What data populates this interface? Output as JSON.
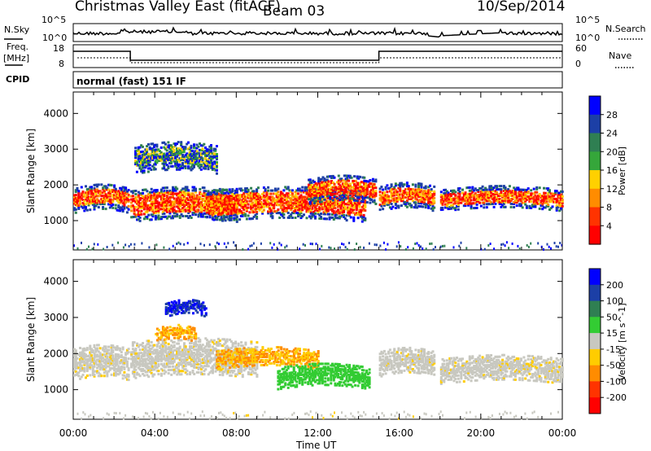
{
  "header": {
    "station": "Christmas Valley East (fitACF)",
    "beam": "Beam 03",
    "date": "10/Sep/2014"
  },
  "params": {
    "nsky_label": "N.Sky",
    "nsearch_label": "N.Search",
    "nsky_ticks": [
      "10^5",
      "10^0"
    ],
    "nsearch_ticks": [
      "10^5",
      "10^0"
    ],
    "freq_label": "Freq.",
    "freq_unit": "[MHz]",
    "freq_ticks": [
      "18",
      "8"
    ],
    "nave_label": "Nave",
    "nave_ticks": [
      "60",
      "0"
    ],
    "cpid_label": "CPID",
    "cpid_value": "normal (fast) 151 IF"
  },
  "colors": {
    "power": [
      "#0000ff",
      "#1c3fa6",
      "#2f7f52",
      "#35a63a",
      "#ffd000",
      "#ff8c00",
      "#ff3300",
      "#ff0000"
    ],
    "velocity": [
      "#0000ff",
      "#1c3fa6",
      "#2f7f52",
      "#33cc33",
      "#c8c8c0",
      "#ffcc00",
      "#ff8c00",
      "#ff3300",
      "#ff0000"
    ]
  },
  "chart_data": [
    {
      "type": "heatmap",
      "panel": "power",
      "ylabel": "Slant Range [km]",
      "yticks": [
        "4000",
        "3000",
        "2000",
        "1000"
      ],
      "ylim": [
        180,
        4600
      ],
      "xlim": [
        0,
        24
      ],
      "colorbar_label": "Power [dB]",
      "colorbar_ticks": [
        "28",
        "24",
        "20",
        "16",
        "12",
        "8",
        "4"
      ],
      "bands": [
        {
          "t0": 0.0,
          "t1": 2.7,
          "r_center": 1550,
          "r_width": 700,
          "level": "high"
        },
        {
          "t0": 2.8,
          "t1": 8.0,
          "r_center": 1400,
          "r_width": 900,
          "level": "high"
        },
        {
          "t0": 3.0,
          "t1": 7.0,
          "r_center": 2700,
          "r_width": 800,
          "level": "mid"
        },
        {
          "t0": 6.5,
          "t1": 14.3,
          "r_center": 1400,
          "r_width": 900,
          "level": "high"
        },
        {
          "t0": 11.5,
          "t1": 14.8,
          "r_center": 1800,
          "r_width": 700,
          "level": "high"
        },
        {
          "t0": 15.0,
          "t1": 17.7,
          "r_center": 1600,
          "r_width": 700,
          "level": "high"
        },
        {
          "t0": 18.0,
          "t1": 24.0,
          "r_center": 1550,
          "r_width": 600,
          "level": "high"
        }
      ]
    },
    {
      "type": "heatmap",
      "panel": "velocity",
      "ylabel": "Slant Range [km]",
      "yticks": [
        "4000",
        "3000",
        "2000",
        "1000"
      ],
      "ylim": [
        180,
        4600
      ],
      "xlim": [
        0,
        24
      ],
      "colorbar_label": "Velocity [m s^-1]",
      "colorbar_ticks": [
        "200",
        "100",
        "50",
        "15",
        "-15",
        "-50",
        "-100",
        "-200"
      ],
      "bands": [
        {
          "t0": 0.0,
          "t1": 2.7,
          "r_center": 1700,
          "r_width": 900,
          "level": "ground"
        },
        {
          "t0": 2.8,
          "t1": 9.0,
          "r_center": 1800,
          "r_width": 1000,
          "level": "ground"
        },
        {
          "t0": 4.0,
          "t1": 6.0,
          "r_center": 2500,
          "r_width": 400,
          "level": "neg"
        },
        {
          "t0": 4.5,
          "t1": 6.5,
          "r_center": 3200,
          "r_width": 400,
          "level": "pos"
        },
        {
          "t0": 7.0,
          "t1": 12.0,
          "r_center": 1800,
          "r_width": 500,
          "level": "neg"
        },
        {
          "t0": 10.0,
          "t1": 14.5,
          "r_center": 1300,
          "r_width": 600,
          "level": "low"
        },
        {
          "t0": 15.0,
          "t1": 17.7,
          "r_center": 1700,
          "r_width": 700,
          "level": "ground"
        },
        {
          "t0": 18.0,
          "t1": 24.0,
          "r_center": 1500,
          "r_width": 700,
          "level": "ground"
        }
      ]
    }
  ],
  "xaxis": {
    "ticks": [
      "00:00",
      "04:00",
      "08:00",
      "12:00",
      "16:00",
      "20:00",
      "00:00"
    ],
    "label": "Time UT"
  }
}
